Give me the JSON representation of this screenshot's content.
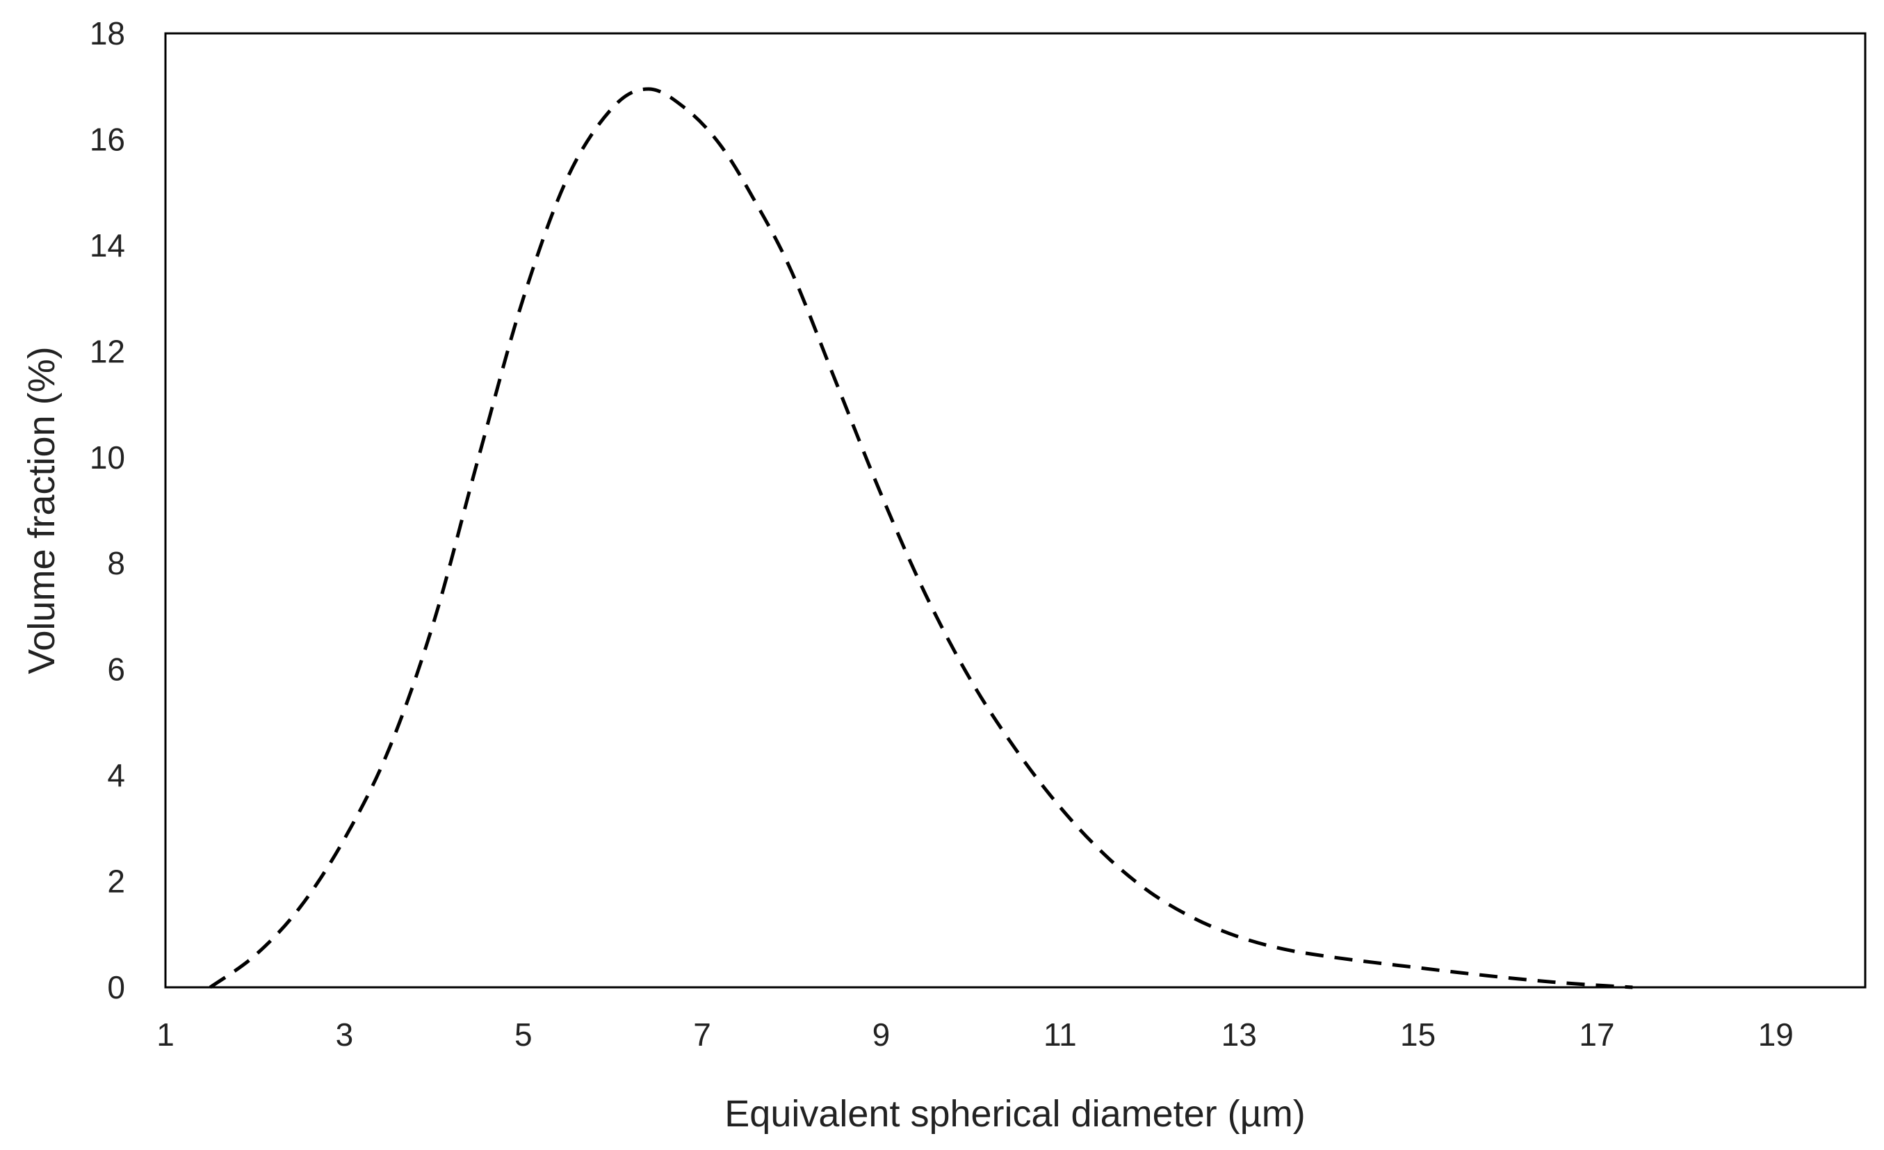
{
  "chart_data": {
    "type": "line",
    "title": "",
    "xlabel": "Equivalent spherical diameter (µm)",
    "ylabel": "Volume fraction (%)",
    "xlim": [
      1,
      20
    ],
    "ylim": [
      0,
      18
    ],
    "x_ticks": [
      "1",
      "3",
      "5",
      "7",
      "9",
      "11",
      "13",
      "15",
      "17",
      "19"
    ],
    "y_ticks": [
      "0",
      "2",
      "4",
      "6",
      "8",
      "10",
      "12",
      "14",
      "16",
      "18"
    ],
    "grid": false,
    "legend": "none",
    "series": [
      {
        "line_style": "dashed",
        "color": "#000000",
        "x": [
          1.5,
          2.0,
          2.5,
          3.0,
          3.5,
          4.0,
          4.5,
          5.0,
          5.5,
          6.0,
          6.4,
          6.8,
          7.2,
          7.6,
          8.0,
          8.5,
          9.0,
          9.5,
          10.0,
          10.5,
          11.0,
          11.5,
          12.0,
          12.5,
          13.0,
          13.5,
          14.0,
          14.5,
          15.0,
          15.5,
          16.0,
          16.5,
          17.0,
          17.4
        ],
        "y": [
          0.0,
          0.6,
          1.5,
          2.8,
          4.5,
          6.9,
          10.0,
          13.0,
          15.3,
          16.6,
          16.95,
          16.6,
          15.9,
          14.8,
          13.5,
          11.4,
          9.3,
          7.4,
          5.8,
          4.5,
          3.4,
          2.5,
          1.8,
          1.3,
          0.95,
          0.72,
          0.58,
          0.47,
          0.37,
          0.27,
          0.18,
          0.1,
          0.04,
          0.0
        ]
      }
    ]
  }
}
